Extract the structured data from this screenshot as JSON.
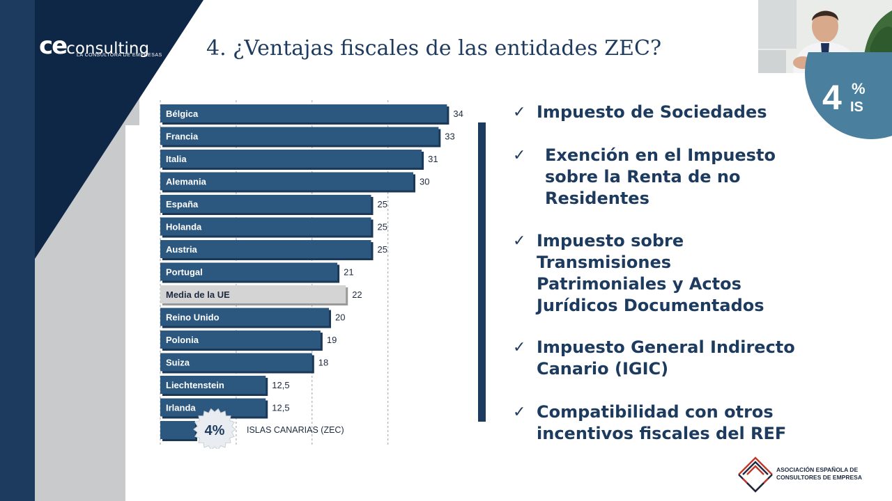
{
  "logo": {
    "brand_short": "ce",
    "brand_word": "consulting",
    "tagline": "LA CONSULTORA DE EMPRESAS"
  },
  "slide_title": "4. ¿Ventajas fiscales de las entidades ZEC?",
  "chart_data": {
    "type": "bar",
    "orientation": "horizontal",
    "categories": [
      "Bélgica",
      "Francia",
      "Italia",
      "Alemania",
      "España",
      "Holanda",
      "Austria",
      "Portugal",
      "Media de la UE",
      "Reino Unido",
      "Polonia",
      "Suiza",
      "Liechtenstein",
      "Irlanda",
      "ISLAS CANARIAS (ZEC)"
    ],
    "values": [
      34,
      33,
      31,
      30,
      25,
      25,
      25,
      21,
      22,
      20,
      19,
      18,
      12.5,
      12.5,
      4
    ],
    "value_labels": [
      "34",
      "33",
      "31",
      "30",
      "25",
      "25",
      "25",
      "21",
      "22",
      "20",
      "19",
      "18",
      "12,5",
      "12,5",
      "4%"
    ],
    "highlight_category": "Media de la UE",
    "colors": {
      "bar": "#2c587f",
      "bar_shadow": "#1b3857",
      "highlight": "#d4d4d4",
      "highlight_shadow": "#9a9a9a"
    },
    "grid": true,
    "xlim": [
      0,
      36
    ]
  },
  "bullets": [
    {
      "check": "✓",
      "lines": [
        "Impuesto de Sociedades"
      ]
    },
    {
      "check": "✓",
      "lines": [
        "Exención en el Impuesto",
        "sobre la Renta de no",
        "Residentes"
      ]
    },
    {
      "check": "✓",
      "lines": [
        "Impuesto sobre",
        "Transmisiones",
        "Patrimoniales y Actos",
        "Jurídicos Documentados"
      ]
    },
    {
      "check": "✓",
      "lines": [
        "Impuesto General Indirecto",
        "Canario (IGIC)"
      ]
    },
    {
      "check": "✓",
      "lines": [
        "Compatibilidad con otros",
        "incentivos fiscales del REF"
      ]
    }
  ],
  "badge": {
    "value": "4",
    "unit": "%",
    "label": "IS"
  },
  "association": {
    "line1": "ASOCIACIÓN ESPAÑOLA DE",
    "line2": "CONSULTORES DE EMPRESA"
  },
  "colors": {
    "navy": "#1d3a5f",
    "dark_navy": "#0f2747",
    "grey": "#c9cacc",
    "badge_blue": "#4a7f9e"
  }
}
